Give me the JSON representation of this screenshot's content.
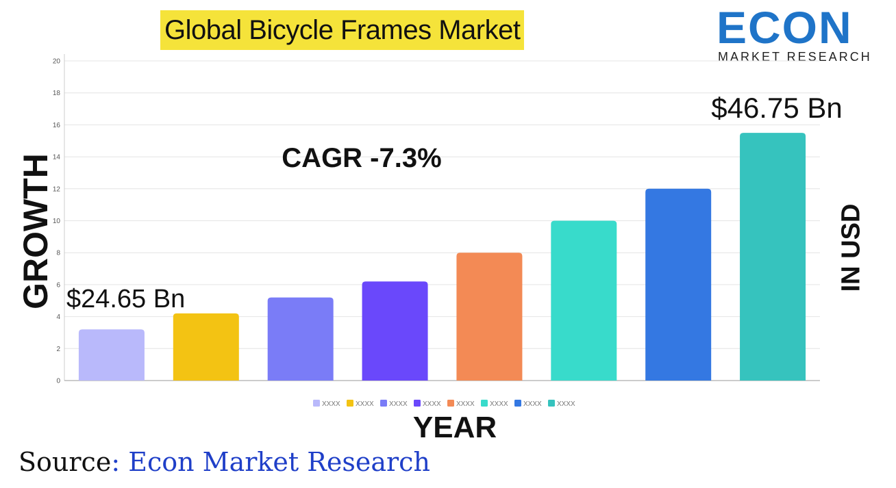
{
  "title": "Global Bicycle Frames Market",
  "logo": {
    "word": "ECON",
    "subtitle": "MARKET RESEARCH"
  },
  "source": {
    "prefix": "Source",
    "separator": ": ",
    "name": "Econ Market Research"
  },
  "colors": {
    "title_highlight": "#f5e33a",
    "logo_blue": "#1f74c8",
    "source_blue": "#1f3fc8"
  },
  "chart_data": {
    "type": "bar",
    "title": "Global Bicycle Frames Market",
    "xlabel": "YEAR",
    "ylabel": "GROWTH",
    "right_label": "IN USD",
    "ylim": [
      0,
      20
    ],
    "yticks": [
      0,
      2,
      4,
      6,
      8,
      10,
      12,
      14,
      16,
      18,
      20
    ],
    "grid": true,
    "legend_position": "bottom",
    "categories": [
      "XXXX",
      "XXXX",
      "XXXX",
      "XXXX",
      "XXXX",
      "XXXX",
      "XXXX",
      "XXXX"
    ],
    "values": [
      3.2,
      4.2,
      5.2,
      6.2,
      8.0,
      10.0,
      12.0,
      15.5
    ],
    "bar_colors": [
      "#b9b9fb",
      "#f3c313",
      "#7a7cf7",
      "#6a48fb",
      "#f38a55",
      "#38dbcb",
      "#3478e2",
      "#36c3be"
    ],
    "annotations": [
      {
        "text": "$24.65 Bn",
        "bar_index": 0
      },
      {
        "text": "$46.75 Bn",
        "bar_index": 7
      },
      {
        "text": "CAGR -7.3%"
      }
    ]
  }
}
